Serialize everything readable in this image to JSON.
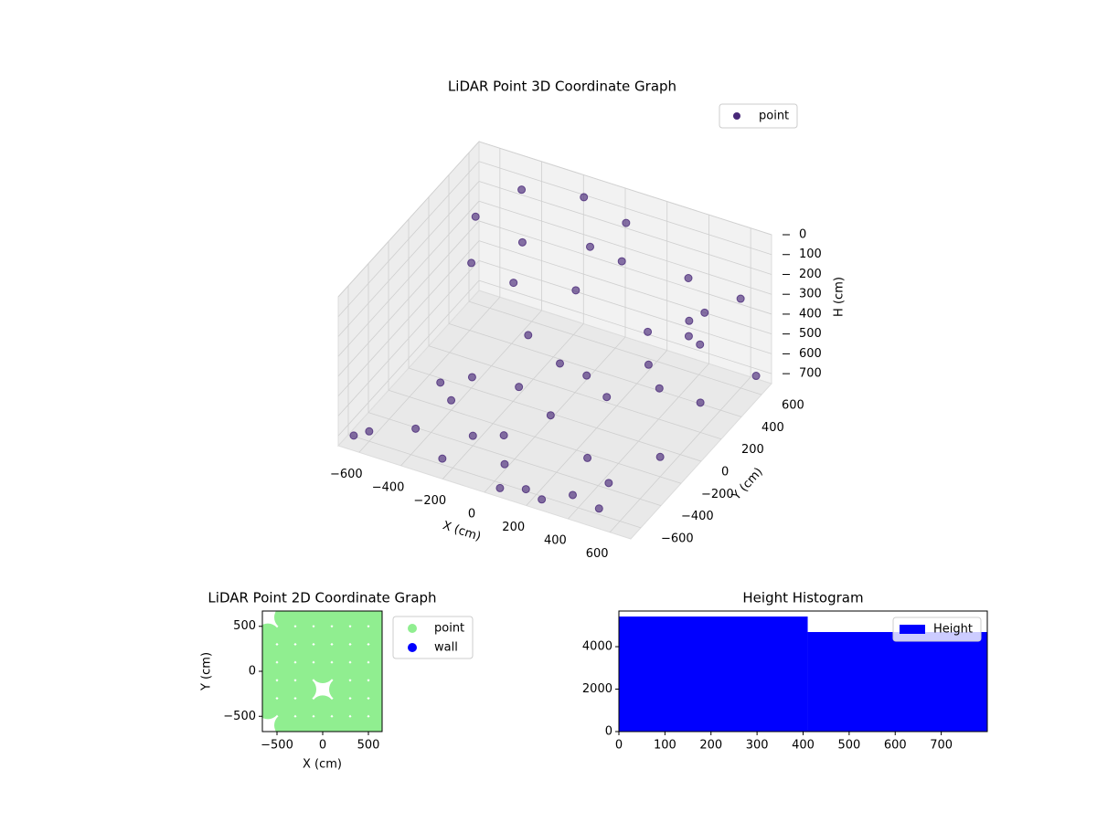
{
  "chart_data": [
    {
      "type": "scatter3d",
      "title": "LiDAR Point 3D Coordinate Graph",
      "x_label": "X (cm)",
      "y_label": "Y (cm)",
      "z_label": "H (cm)",
      "xlim": [
        -700,
        700
      ],
      "ylim": [
        -700,
        700
      ],
      "zlim": [
        0,
        750
      ],
      "z_inverted": true,
      "xticks": [
        {
          "value": -600,
          "label": "−600"
        },
        {
          "value": -400,
          "label": "−400"
        },
        {
          "value": -200,
          "label": "−200"
        },
        0,
        200,
        400,
        600
      ],
      "yticks": [
        {
          "value": -600,
          "label": "−600"
        },
        {
          "value": -400,
          "label": "−400"
        },
        {
          "value": -200,
          "label": "−200"
        },
        0,
        200,
        400,
        600
      ],
      "zticks": [
        0,
        100,
        200,
        300,
        400,
        500,
        600,
        700
      ],
      "grid": true,
      "legend": "upper right",
      "series": [
        {
          "name": "point",
          "color": "#482878",
          "x": [
            200,
            -150,
            -500,
            -150,
            100,
            -400,
            -400,
            100,
            -300,
            0,
            -600,
            -400,
            0,
            300,
            500,
            600,
            400,
            -200,
            200,
            600,
            -500,
            -100,
            250,
            450,
            300,
            400,
            500,
            200,
            450,
            550,
            -300,
            -100,
            100,
            0,
            -200,
            650,
            -650,
            350,
            -450,
            150,
            600,
            500,
            -250,
            50,
            350
          ],
          "y": [
            250,
            600,
            250,
            -100,
            500,
            500,
            0,
            0,
            300,
            350,
            -600,
            -200,
            -500,
            -300,
            -600,
            200,
            500,
            -400,
            100,
            -200,
            -100,
            -300,
            -650,
            -400,
            300,
            100,
            0,
            -100,
            400,
            300,
            -200,
            -150,
            -250,
            50,
            150,
            650,
            -650,
            -550,
            -450,
            -600,
            600,
            450,
            -600,
            -650,
            600
          ],
          "z": [
            50,
            40,
            60,
            80,
            30,
            30,
            120,
            90,
            150,
            100,
            700,
            700,
            720,
            700,
            720,
            600,
            500,
            700,
            650,
            650,
            700,
            720,
            730,
            720,
            400,
            420,
            450,
            430,
            350,
            380,
            550,
            560,
            580,
            520,
            500,
            700,
            710,
            730,
            720,
            740,
            300,
            320,
            720,
            740,
            280
          ]
        }
      ]
    },
    {
      "type": "scatter",
      "title": "LiDAR Point 2D Coordinate Graph",
      "x_label": "X (cm)",
      "y_label": "Y (cm)",
      "xlim": [
        -660,
        650
      ],
      "ylim": [
        -670,
        670
      ],
      "xticks": [
        {
          "value": -500,
          "label": "−500"
        },
        0,
        500
      ],
      "yticks": [
        {
          "value": -500,
          "label": "−500"
        },
        0,
        500
      ],
      "legend": "outside upper right",
      "series": [
        {
          "name": "point",
          "color": "#90ee90",
          "x": [
            -400,
            -200,
            0,
            200,
            400,
            600,
            -600,
            -400,
            -200,
            0,
            200,
            400,
            600,
            -600,
            -400,
            -200,
            0,
            200,
            400,
            600,
            -600,
            -400,
            -200,
            0,
            200,
            400,
            600,
            -600,
            -400,
            -200,
            200,
            400,
            600,
            -600,
            -400,
            -200,
            0,
            200,
            400,
            600,
            -400,
            -200,
            0,
            200,
            400,
            600
          ],
          "y": [
            600,
            600,
            600,
            600,
            600,
            600,
            400,
            400,
            400,
            400,
            400,
            400,
            400,
            200,
            200,
            200,
            200,
            200,
            200,
            200,
            0,
            0,
            0,
            0,
            0,
            0,
            0,
            -200,
            -200,
            -200,
            -200,
            -200,
            -200,
            -400,
            -400,
            -400,
            -400,
            -400,
            -400,
            -400,
            -600,
            -600,
            -600,
            -600,
            -600,
            -600
          ]
        },
        {
          "name": "wall",
          "color": "#0000ff",
          "x": [],
          "y": []
        }
      ]
    },
    {
      "type": "histogram",
      "title": "Height Histogram",
      "bins": [
        0,
        410,
        800
      ],
      "values": [
        5420,
        4690
      ],
      "color": "#0000ff",
      "name": "Height",
      "xlim": [
        0,
        800
      ],
      "ylim": [
        0,
        5680
      ],
      "xticks": [
        0,
        100,
        200,
        300,
        400,
        500,
        600,
        700
      ],
      "yticks": [
        0,
        2000,
        4000
      ],
      "legend": "upper right"
    }
  ]
}
